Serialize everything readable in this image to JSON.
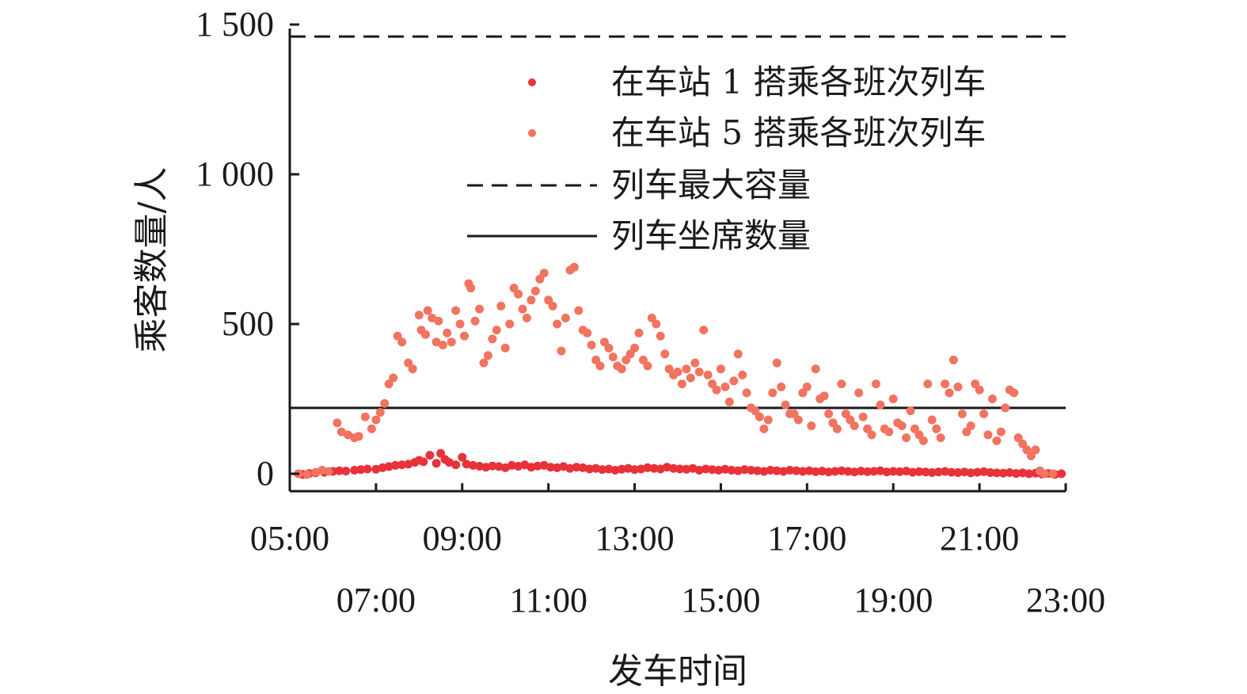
{
  "chart_data": {
    "type": "scatter",
    "xlabel": "发车时间",
    "ylabel": "乘客数量/人",
    "x_unit": "hour of day",
    "xlim": [
      5,
      23
    ],
    "ylim": [
      -30,
      1500
    ],
    "x_ticks": [
      {
        "value": 5,
        "label": "05:00"
      },
      {
        "value": 7,
        "label": "07:00"
      },
      {
        "value": 9,
        "label": "09:00"
      },
      {
        "value": 11,
        "label": "11:00"
      },
      {
        "value": 13,
        "label": "13:00"
      },
      {
        "value": 15,
        "label": "15:00"
      },
      {
        "value": 17,
        "label": "17:00"
      },
      {
        "value": 19,
        "label": "19:00"
      },
      {
        "value": 21,
        "label": "21:00"
      },
      {
        "value": 23,
        "label": "23:00"
      }
    ],
    "y_ticks": [
      {
        "value": 0,
        "label": "0"
      },
      {
        "value": 500,
        "label": "500"
      },
      {
        "value": 1000,
        "label": "1 000"
      },
      {
        "value": 1500,
        "label": "1 500"
      }
    ],
    "legend_position": "top-right",
    "reference_lines": [
      {
        "name": "列车最大容量",
        "y": 1460,
        "style": "dashed",
        "color": "#1a1a1a"
      },
      {
        "name": "列车坐席数量",
        "y": 220,
        "style": "solid",
        "color": "#1a1a1a"
      }
    ],
    "series": [
      {
        "name": "在车站 1 搭乘各班次列车",
        "color": "#e8323a",
        "points": [
          [
            5.2,
            0
          ],
          [
            5.3,
            -2
          ],
          [
            5.45,
            1
          ],
          [
            5.6,
            3
          ],
          [
            5.8,
            5
          ],
          [
            6.0,
            8
          ],
          [
            6.15,
            10
          ],
          [
            6.3,
            9
          ],
          [
            6.5,
            12
          ],
          [
            6.65,
            14
          ],
          [
            6.8,
            16
          ],
          [
            7.0,
            15
          ],
          [
            7.15,
            20
          ],
          [
            7.3,
            24
          ],
          [
            7.45,
            28
          ],
          [
            7.6,
            30
          ],
          [
            7.75,
            32
          ],
          [
            7.9,
            38
          ],
          [
            8.0,
            45
          ],
          [
            8.1,
            40
          ],
          [
            8.25,
            62
          ],
          [
            8.4,
            35
          ],
          [
            8.5,
            68
          ],
          [
            8.6,
            48
          ],
          [
            8.7,
            38
          ],
          [
            8.85,
            30
          ],
          [
            9.0,
            55
          ],
          [
            9.1,
            32
          ],
          [
            9.25,
            28
          ],
          [
            9.4,
            25
          ],
          [
            9.55,
            22
          ],
          [
            9.7,
            26
          ],
          [
            9.85,
            24
          ],
          [
            10.0,
            20
          ],
          [
            10.15,
            28
          ],
          [
            10.3,
            25
          ],
          [
            10.45,
            30
          ],
          [
            10.6,
            22
          ],
          [
            10.75,
            26
          ],
          [
            10.9,
            28
          ],
          [
            11.05,
            22
          ],
          [
            11.2,
            20
          ],
          [
            11.35,
            24
          ],
          [
            11.5,
            18
          ],
          [
            11.65,
            22
          ],
          [
            11.8,
            20
          ],
          [
            11.95,
            16
          ],
          [
            12.1,
            18
          ],
          [
            12.25,
            14
          ],
          [
            12.4,
            16
          ],
          [
            12.55,
            12
          ],
          [
            12.7,
            15
          ],
          [
            12.85,
            18
          ],
          [
            13.0,
            14
          ],
          [
            13.15,
            16
          ],
          [
            13.3,
            20
          ],
          [
            13.45,
            18
          ],
          [
            13.6,
            16
          ],
          [
            13.75,
            22
          ],
          [
            13.9,
            18
          ],
          [
            14.05,
            16
          ],
          [
            14.2,
            15
          ],
          [
            14.35,
            18
          ],
          [
            14.5,
            12
          ],
          [
            14.65,
            16
          ],
          [
            14.8,
            14
          ],
          [
            14.95,
            12
          ],
          [
            15.1,
            15
          ],
          [
            15.25,
            12
          ],
          [
            15.4,
            10
          ],
          [
            15.55,
            14
          ],
          [
            15.7,
            12
          ],
          [
            15.85,
            10
          ],
          [
            16.0,
            8
          ],
          [
            16.15,
            12
          ],
          [
            16.3,
            10
          ],
          [
            16.45,
            8
          ],
          [
            16.6,
            12
          ],
          [
            16.75,
            10
          ],
          [
            16.9,
            8
          ],
          [
            17.05,
            10
          ],
          [
            17.2,
            7
          ],
          [
            17.35,
            9
          ],
          [
            17.5,
            6
          ],
          [
            17.65,
            8
          ],
          [
            17.8,
            10
          ],
          [
            17.95,
            8
          ],
          [
            18.1,
            6
          ],
          [
            18.25,
            9
          ],
          [
            18.4,
            7
          ],
          [
            18.55,
            8
          ],
          [
            18.7,
            10
          ],
          [
            18.85,
            6
          ],
          [
            19.0,
            8
          ],
          [
            19.15,
            7
          ],
          [
            19.3,
            9
          ],
          [
            19.45,
            5
          ],
          [
            19.6,
            7
          ],
          [
            19.75,
            6
          ],
          [
            19.9,
            4
          ],
          [
            20.05,
            6
          ],
          [
            20.2,
            8
          ],
          [
            20.35,
            5
          ],
          [
            20.5,
            4
          ],
          [
            20.65,
            6
          ],
          [
            20.8,
            3
          ],
          [
            20.95,
            5
          ],
          [
            21.1,
            7
          ],
          [
            21.25,
            4
          ],
          [
            21.4,
            3
          ],
          [
            21.55,
            2
          ],
          [
            21.7,
            4
          ],
          [
            21.85,
            1
          ],
          [
            22.0,
            3
          ],
          [
            22.15,
            0
          ],
          [
            22.3,
            2
          ],
          [
            22.45,
            -1
          ],
          [
            22.6,
            1
          ],
          [
            22.75,
            -2
          ],
          [
            22.9,
            0
          ]
        ]
      },
      {
        "name": "在车站 5 搭乘各班次列车",
        "color": "#f07460",
        "points": [
          [
            5.2,
            0
          ],
          [
            5.4,
            -2
          ],
          [
            5.6,
            5
          ],
          [
            5.75,
            12
          ],
          [
            5.9,
            8
          ],
          [
            6.1,
            170
          ],
          [
            6.2,
            140
          ],
          [
            6.35,
            130
          ],
          [
            6.5,
            120
          ],
          [
            6.6,
            125
          ],
          [
            6.75,
            190
          ],
          [
            6.9,
            150
          ],
          [
            7.0,
            180
          ],
          [
            7.1,
            205
          ],
          [
            7.2,
            235
          ],
          [
            7.3,
            300
          ],
          [
            7.4,
            320
          ],
          [
            7.5,
            460
          ],
          [
            7.6,
            440
          ],
          [
            7.75,
            370
          ],
          [
            7.85,
            350
          ],
          [
            8.0,
            530
          ],
          [
            8.05,
            480
          ],
          [
            8.15,
            465
          ],
          [
            8.2,
            545
          ],
          [
            8.3,
            520
          ],
          [
            8.4,
            440
          ],
          [
            8.45,
            510
          ],
          [
            8.55,
            430
          ],
          [
            8.65,
            470
          ],
          [
            8.75,
            440
          ],
          [
            8.85,
            545
          ],
          [
            8.95,
            500
          ],
          [
            9.05,
            460
          ],
          [
            9.15,
            635
          ],
          [
            9.2,
            620
          ],
          [
            9.3,
            510
          ],
          [
            9.4,
            550
          ],
          [
            9.5,
            370
          ],
          [
            9.6,
            395
          ],
          [
            9.7,
            450
          ],
          [
            9.8,
            480
          ],
          [
            9.9,
            560
          ],
          [
            10.0,
            420
          ],
          [
            10.1,
            500
          ],
          [
            10.2,
            620
          ],
          [
            10.3,
            600
          ],
          [
            10.4,
            550
          ],
          [
            10.5,
            520
          ],
          [
            10.6,
            580
          ],
          [
            10.7,
            610
          ],
          [
            10.8,
            650
          ],
          [
            10.9,
            670
          ],
          [
            11.0,
            580
          ],
          [
            11.1,
            560
          ],
          [
            11.2,
            500
          ],
          [
            11.3,
            410
          ],
          [
            11.4,
            520
          ],
          [
            11.5,
            680
          ],
          [
            11.6,
            690
          ],
          [
            11.7,
            545
          ],
          [
            11.8,
            480
          ],
          [
            11.9,
            470
          ],
          [
            12.0,
            430
          ],
          [
            12.1,
            380
          ],
          [
            12.2,
            360
          ],
          [
            12.3,
            440
          ],
          [
            12.4,
            420
          ],
          [
            12.5,
            390
          ],
          [
            12.6,
            360
          ],
          [
            12.7,
            350
          ],
          [
            12.8,
            380
          ],
          [
            12.9,
            400
          ],
          [
            13.0,
            420
          ],
          [
            13.1,
            470
          ],
          [
            13.2,
            380
          ],
          [
            13.3,
            360
          ],
          [
            13.4,
            520
          ],
          [
            13.5,
            500
          ],
          [
            13.6,
            460
          ],
          [
            13.7,
            400
          ],
          [
            13.8,
            350
          ],
          [
            13.9,
            330
          ],
          [
            14.0,
            340
          ],
          [
            14.1,
            300
          ],
          [
            14.2,
            350
          ],
          [
            14.3,
            320
          ],
          [
            14.4,
            370
          ],
          [
            14.5,
            340
          ],
          [
            14.6,
            480
          ],
          [
            14.7,
            330
          ],
          [
            14.8,
            300
          ],
          [
            14.9,
            280
          ],
          [
            15.0,
            350
          ],
          [
            15.1,
            290
          ],
          [
            15.2,
            240
          ],
          [
            15.3,
            310
          ],
          [
            15.4,
            400
          ],
          [
            15.5,
            330
          ],
          [
            15.6,
            270
          ],
          [
            15.7,
            220
          ],
          [
            15.8,
            210
          ],
          [
            15.9,
            190
          ],
          [
            16.0,
            150
          ],
          [
            16.1,
            180
          ],
          [
            16.2,
            270
          ],
          [
            16.3,
            370
          ],
          [
            16.4,
            290
          ],
          [
            16.5,
            230
          ],
          [
            16.6,
            200
          ],
          [
            16.7,
            200
          ],
          [
            16.8,
            180
          ],
          [
            16.9,
            270
          ],
          [
            17.0,
            290
          ],
          [
            17.1,
            160
          ],
          [
            17.2,
            350
          ],
          [
            17.3,
            250
          ],
          [
            17.4,
            260
          ],
          [
            17.5,
            200
          ],
          [
            17.6,
            170
          ],
          [
            17.7,
            150
          ],
          [
            17.8,
            300
          ],
          [
            17.9,
            200
          ],
          [
            18.0,
            180
          ],
          [
            18.1,
            160
          ],
          [
            18.2,
            270
          ],
          [
            18.3,
            190
          ],
          [
            18.4,
            150
          ],
          [
            18.5,
            130
          ],
          [
            18.6,
            300
          ],
          [
            18.7,
            230
          ],
          [
            18.8,
            150
          ],
          [
            18.9,
            140
          ],
          [
            19.0,
            250
          ],
          [
            19.1,
            170
          ],
          [
            19.2,
            160
          ],
          [
            19.3,
            120
          ],
          [
            19.4,
            210
          ],
          [
            19.5,
            150
          ],
          [
            19.6,
            130
          ],
          [
            19.7,
            110
          ],
          [
            19.8,
            300
          ],
          [
            19.9,
            180
          ],
          [
            20.0,
            150
          ],
          [
            20.1,
            120
          ],
          [
            20.2,
            300
          ],
          [
            20.3,
            270
          ],
          [
            20.4,
            380
          ],
          [
            20.5,
            290
          ],
          [
            20.6,
            200
          ],
          [
            20.7,
            140
          ],
          [
            20.8,
            160
          ],
          [
            20.9,
            300
          ],
          [
            21.0,
            280
          ],
          [
            21.1,
            200
          ],
          [
            21.2,
            130
          ],
          [
            21.3,
            250
          ],
          [
            21.4,
            110
          ],
          [
            21.5,
            140
          ],
          [
            21.6,
            220
          ],
          [
            21.7,
            280
          ],
          [
            21.8,
            270
          ],
          [
            21.9,
            120
          ],
          [
            22.0,
            100
          ],
          [
            22.1,
            80
          ],
          [
            22.2,
            60
          ],
          [
            22.3,
            80
          ],
          [
            22.4,
            10
          ],
          [
            22.5,
            0
          ],
          [
            22.7,
            0
          ]
        ]
      }
    ]
  }
}
